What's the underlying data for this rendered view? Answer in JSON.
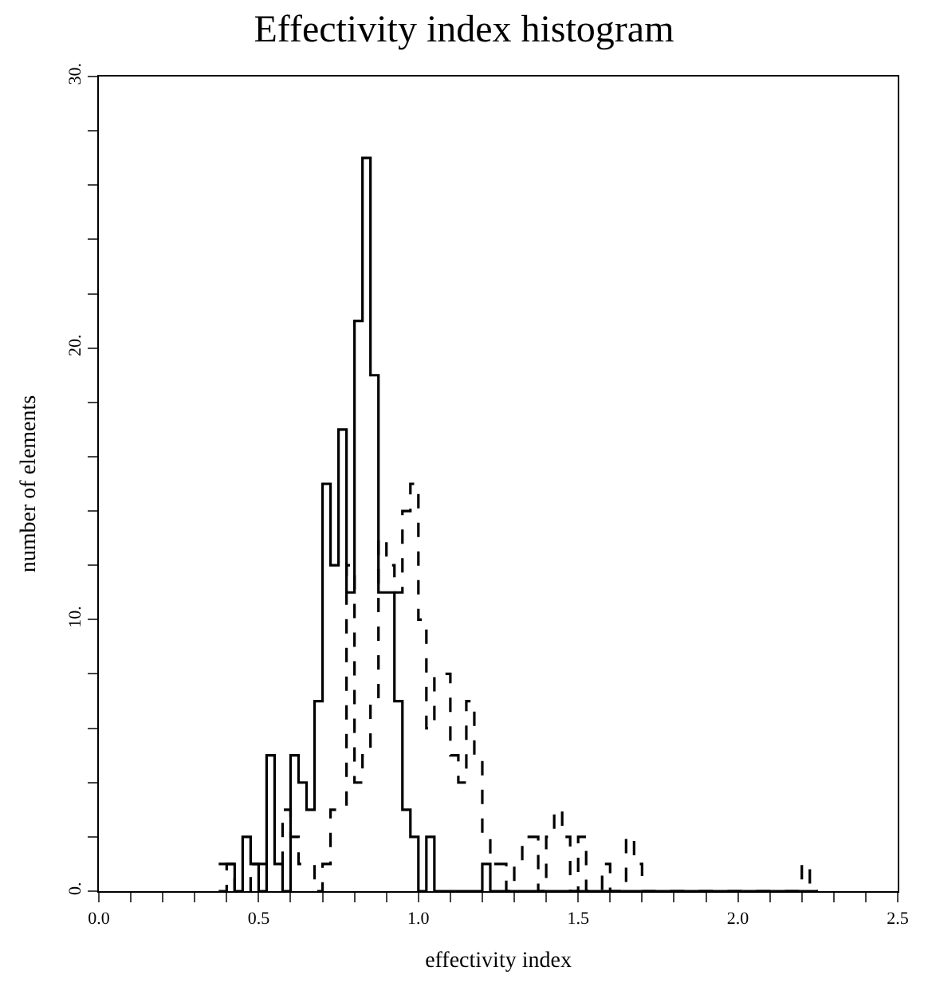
{
  "chart_data": {
    "type": "histogram",
    "title": "Effectivity index histogram",
    "xlabel": "effectivity index",
    "ylabel": "number of elements",
    "bins": [
      0.375,
      0.4,
      0.425,
      0.45,
      0.475,
      0.5,
      0.525,
      0.55,
      0.575,
      0.6,
      0.625,
      0.65,
      0.675,
      0.7,
      0.725,
      0.75,
      0.775,
      0.8,
      0.825,
      0.85,
      0.875,
      0.9,
      0.925,
      0.95,
      0.975,
      1.0,
      1.025,
      1.05,
      1.075,
      1.1,
      1.125,
      1.15,
      1.175,
      1.2,
      1.225,
      1.25,
      1.275,
      1.3,
      1.325,
      1.35,
      1.375,
      1.4,
      1.425,
      1.45,
      1.475,
      1.5,
      1.525,
      1.55,
      1.575,
      1.6,
      1.625,
      1.65,
      1.675,
      1.7,
      1.725,
      1.75,
      1.775,
      1.8,
      1.825,
      1.85,
      1.875,
      1.9,
      1.925,
      1.95,
      1.975,
      2.0,
      2.025,
      2.05,
      2.075,
      2.1,
      2.125,
      2.15,
      2.175,
      2.2,
      2.225,
      2.25
    ],
    "series": [
      {
        "color": "#000000",
        "line_style": "solid",
        "values": [
          1,
          1,
          0,
          2,
          1,
          0,
          5,
          1,
          0,
          5,
          4,
          3,
          7,
          15,
          12,
          17,
          11,
          21,
          27,
          19,
          11,
          11,
          7,
          3,
          2,
          0,
          2,
          0,
          0,
          0,
          0,
          0,
          0,
          1,
          0,
          0,
          0,
          0,
          0,
          0,
          0,
          0,
          0,
          0,
          0,
          0,
          0,
          0,
          0,
          0,
          0,
          0,
          0,
          0,
          0,
          0,
          0,
          0,
          0,
          0,
          0,
          0,
          0,
          0,
          0,
          0,
          0,
          0,
          0,
          0,
          0,
          0,
          0,
          0,
          0
        ]
      },
      {
        "color": "#000000",
        "line_style": "dashed",
        "values": [
          0,
          1,
          0,
          0,
          1,
          1,
          1,
          1,
          3,
          2,
          1,
          1,
          0,
          1,
          3,
          3,
          12,
          4,
          5,
          7,
          13,
          12,
          11,
          14,
          15,
          10,
          6,
          8,
          8,
          5,
          4,
          7,
          5,
          2,
          1,
          1,
          0,
          1,
          2,
          2,
          0,
          2,
          3,
          2,
          0,
          2,
          0,
          0,
          1,
          0,
          0,
          2,
          1,
          0,
          0,
          0,
          0,
          0,
          0,
          0,
          0,
          0,
          0,
          0,
          0,
          0,
          0,
          0,
          0,
          0,
          0,
          0,
          0,
          1,
          0
        ]
      }
    ],
    "xlim": [
      0,
      2.5
    ],
    "xticks": [
      {
        "value": 0,
        "label": "0.0"
      },
      {
        "value": 0.1,
        "label": null
      },
      {
        "value": 0.2,
        "label": null
      },
      {
        "value": 0.3,
        "label": null
      },
      {
        "value": 0.4,
        "label": null
      },
      0.5,
      {
        "value": 0.6,
        "label": null
      },
      {
        "value": 0.7,
        "label": null
      },
      {
        "value": 0.8,
        "label": null
      },
      {
        "value": 0.9,
        "label": null
      },
      {
        "value": 1,
        "label": "1.0"
      },
      {
        "value": 1.1,
        "label": null
      },
      {
        "value": 1.2,
        "label": null
      },
      {
        "value": 1.3,
        "label": null
      },
      {
        "value": 1.4,
        "label": null
      },
      1.5,
      {
        "value": 1.6,
        "label": null
      },
      {
        "value": 1.7,
        "label": null
      },
      {
        "value": 1.8,
        "label": null
      },
      {
        "value": 1.9,
        "label": null
      },
      {
        "value": 2,
        "label": "2.0"
      },
      {
        "value": 2.1,
        "label": null
      },
      {
        "value": 2.2,
        "label": null
      },
      {
        "value": 2.3,
        "label": null
      },
      {
        "value": 2.4,
        "label": null
      },
      2.5
    ],
    "ylim": [
      0,
      30
    ],
    "yticks": [
      {
        "value": 0,
        "label": "0."
      },
      {
        "value": 2,
        "label": null
      },
      {
        "value": 4,
        "label": null
      },
      {
        "value": 6,
        "label": null
      },
      {
        "value": 8,
        "label": null
      },
      {
        "value": 10,
        "label": "10."
      },
      {
        "value": 12,
        "label": null
      },
      {
        "value": 14,
        "label": null
      },
      {
        "value": 16,
        "label": null
      },
      {
        "value": 18,
        "label": null
      },
      {
        "value": 20,
        "label": "20."
      },
      {
        "value": 22,
        "label": null
      },
      {
        "value": 24,
        "label": null
      },
      {
        "value": 26,
        "label": null
      },
      {
        "value": 28,
        "label": null
      },
      {
        "value": 30,
        "label": "30."
      }
    ]
  }
}
